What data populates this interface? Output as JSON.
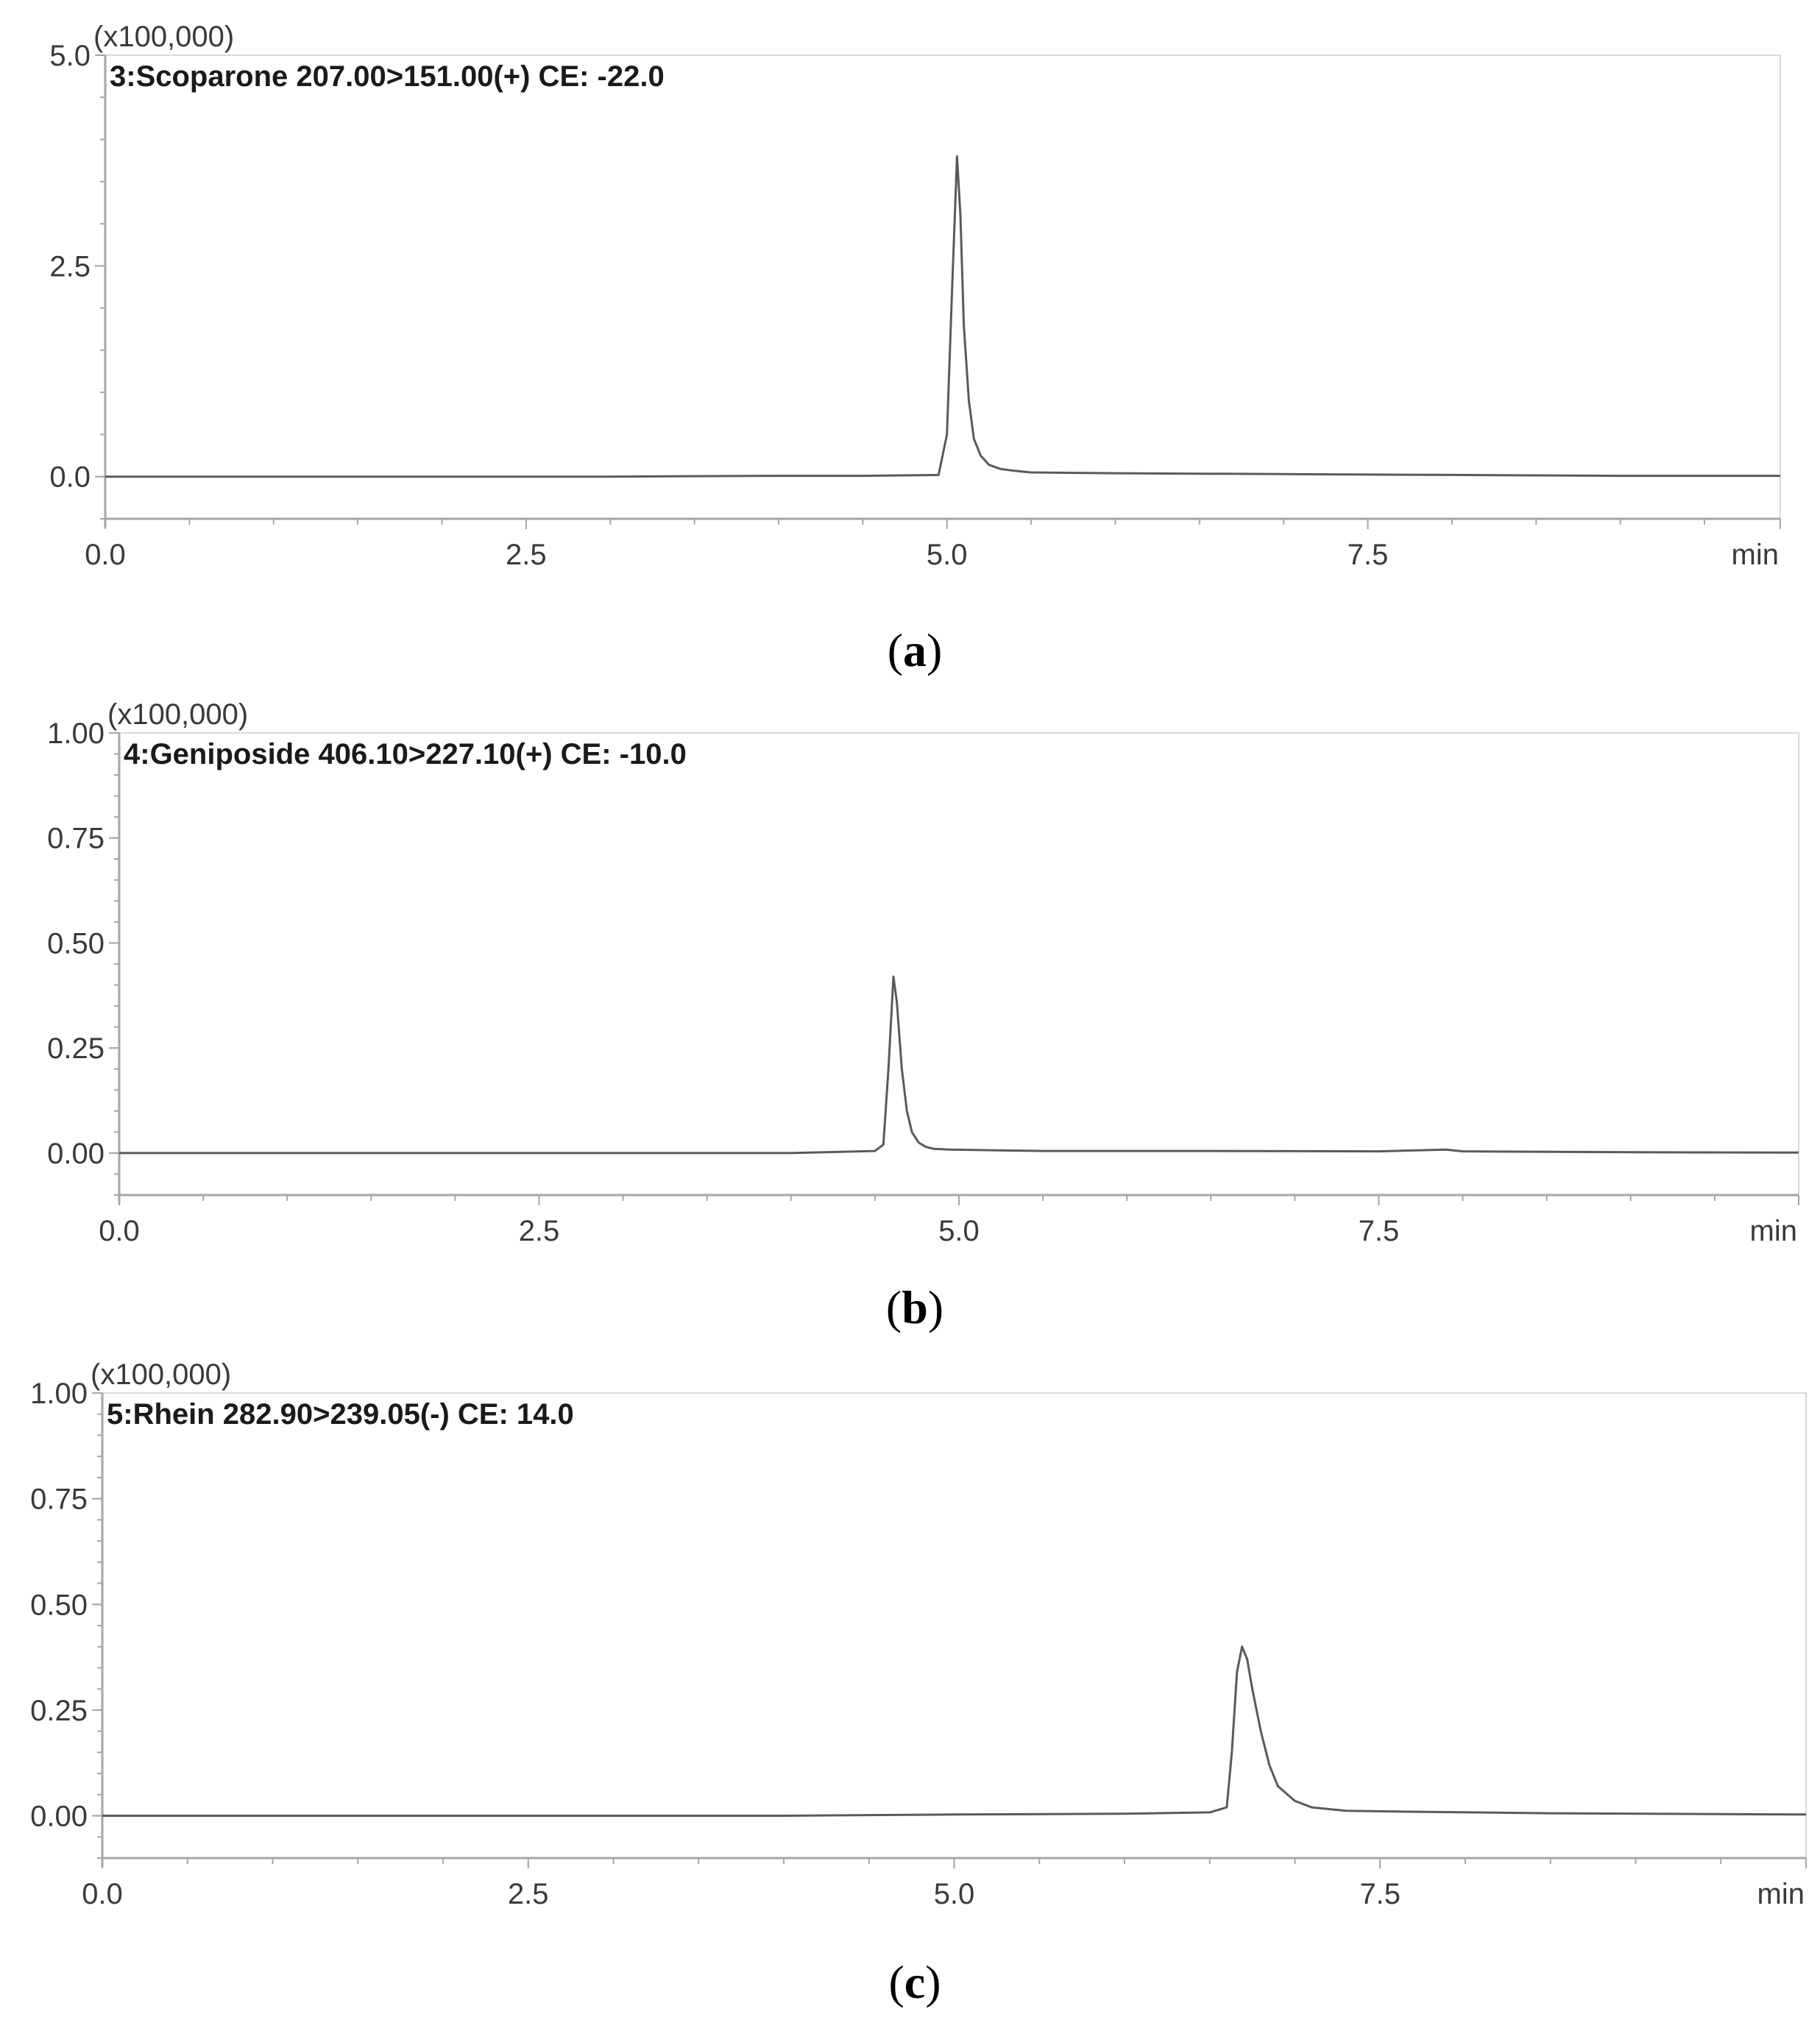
{
  "chart_data": [
    {
      "type": "line",
      "panel": "(a)",
      "caption_letter": "a",
      "title": "3:Scoparone 207.00>151.00(+) CE: -22.0",
      "y_multiplier": "(x100,000)",
      "xlabel": "min",
      "ylabel": "",
      "xlim": [
        0,
        9.95
      ],
      "ylim": [
        -0.5,
        5.0
      ],
      "x_ticks": [
        0.0,
        2.5,
        5.0,
        7.5
      ],
      "x_tick_labels": [
        "0.0",
        "2.5",
        "5.0",
        "7.5"
      ],
      "y_ticks": [
        0.0,
        2.5,
        5.0
      ],
      "y_tick_labels": [
        "0.0",
        "2.5",
        "5.0"
      ],
      "grid": false,
      "series": [
        {
          "x": [
            0.0,
            1.0,
            2.0,
            3.0,
            4.0,
            4.5,
            4.95,
            5.0,
            5.03,
            5.06,
            5.08,
            5.1,
            5.13,
            5.16,
            5.2,
            5.25,
            5.32,
            5.4,
            5.5,
            6.0,
            7.0,
            8.0,
            9.0,
            9.95
          ],
          "y": [
            0.0,
            0.0,
            0.0,
            0.0,
            0.01,
            0.01,
            0.02,
            0.5,
            2.2,
            3.8,
            3.1,
            1.8,
            0.9,
            0.45,
            0.25,
            0.14,
            0.09,
            0.07,
            0.05,
            0.04,
            0.03,
            0.02,
            0.01,
            0.01
          ]
        }
      ]
    },
    {
      "type": "line",
      "panel": "(b)",
      "caption_letter": "b",
      "title": "4:Geniposide 406.10>227.10(+) CE: -10.0",
      "y_multiplier": "(x100,000)",
      "xlabel": "min",
      "ylabel": "",
      "xlim": [
        0,
        10.0
      ],
      "ylim": [
        -0.1,
        1.0
      ],
      "x_ticks": [
        0.0,
        2.5,
        5.0,
        7.5
      ],
      "x_tick_labels": [
        "0.0",
        "2.5",
        "5.0",
        "7.5"
      ],
      "y_ticks": [
        0.0,
        0.25,
        0.5,
        0.75,
        1.0
      ],
      "y_tick_labels": [
        "0.00",
        "0.25",
        "0.50",
        "0.75",
        "1.00"
      ],
      "grid": false,
      "series": [
        {
          "x": [
            0.0,
            1.0,
            2.0,
            3.0,
            4.0,
            4.5,
            4.55,
            4.58,
            4.61,
            4.63,
            4.66,
            4.69,
            4.72,
            4.76,
            4.8,
            4.85,
            4.95,
            5.5,
            6.5,
            7.5,
            7.9,
            8.0,
            9.0,
            10.0
          ],
          "y": [
            0.0,
            0.0,
            0.0,
            0.0,
            0.0,
            0.005,
            0.02,
            0.2,
            0.42,
            0.36,
            0.2,
            0.1,
            0.05,
            0.025,
            0.015,
            0.01,
            0.008,
            0.005,
            0.005,
            0.004,
            0.008,
            0.004,
            0.002,
            0.001
          ]
        }
      ]
    },
    {
      "type": "line",
      "panel": "(c)",
      "caption_letter": "c",
      "title": "5:Rhein 282.90>239.05(-) CE: 14.0",
      "y_multiplier": "(x100,000)",
      "xlabel": "min",
      "ylabel": "",
      "xlim": [
        0,
        10.0
      ],
      "ylim": [
        -0.1,
        1.0
      ],
      "x_ticks": [
        0.0,
        2.5,
        5.0,
        7.5
      ],
      "x_tick_labels": [
        "0.0",
        "2.5",
        "5.0",
        "7.5"
      ],
      "y_ticks": [
        0.0,
        0.25,
        0.5,
        0.75,
        1.0
      ],
      "y_tick_labels": [
        "0.00",
        "0.25",
        "0.50",
        "0.75",
        "1.00"
      ],
      "grid": false,
      "series": [
        {
          "x": [
            0.0,
            1.0,
            2.0,
            3.0,
            4.0,
            5.0,
            6.0,
            6.5,
            6.6,
            6.63,
            6.66,
            6.69,
            6.72,
            6.75,
            6.8,
            6.85,
            6.9,
            7.0,
            7.1,
            7.3,
            7.6,
            8.5,
            9.5,
            10.0
          ],
          "y": [
            0.0,
            0.0,
            0.0,
            0.0,
            0.0,
            0.003,
            0.005,
            0.008,
            0.02,
            0.15,
            0.34,
            0.4,
            0.37,
            0.3,
            0.2,
            0.12,
            0.07,
            0.035,
            0.02,
            0.012,
            0.01,
            0.006,
            0.004,
            0.003
          ]
        }
      ]
    }
  ]
}
